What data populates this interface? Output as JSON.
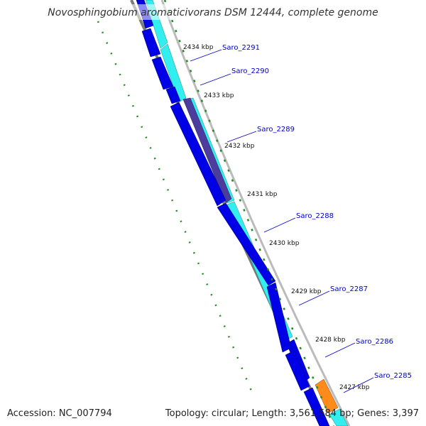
{
  "title": "Novosphingobium aromaticivorans DSM 12444, complete genome",
  "accession": "Accession: NC_007794",
  "topology": "Topology: circular; Length: 3,561,584 bp; Genes: 3,397",
  "colors": {
    "cds_dark": "#0000e6",
    "cds_light": "#33eeee",
    "cds_purple": "#4b3c9e",
    "cds_orange": "#ff8c1a",
    "tick_green": "#228b22",
    "label_blue": "#0000cc",
    "backbone_gray": "#7a7a7a"
  },
  "kbp_ticks": [
    {
      "label": "2434 kbp"
    },
    {
      "label": "2433 kbp"
    },
    {
      "label": "2432 kbp"
    },
    {
      "label": "2431 kbp"
    },
    {
      "label": "2430 kbp"
    },
    {
      "label": "2429 kbp"
    },
    {
      "label": "2428 kbp"
    },
    {
      "label": "2427 kbp"
    }
  ],
  "gene_labels": [
    {
      "label": "Saro_2291"
    },
    {
      "label": "Saro_2290"
    },
    {
      "label": "Saro_2289"
    },
    {
      "label": "Saro_2288"
    },
    {
      "label": "Saro_2287"
    },
    {
      "label": "Saro_2286"
    },
    {
      "label": "Saro_2285"
    }
  ]
}
